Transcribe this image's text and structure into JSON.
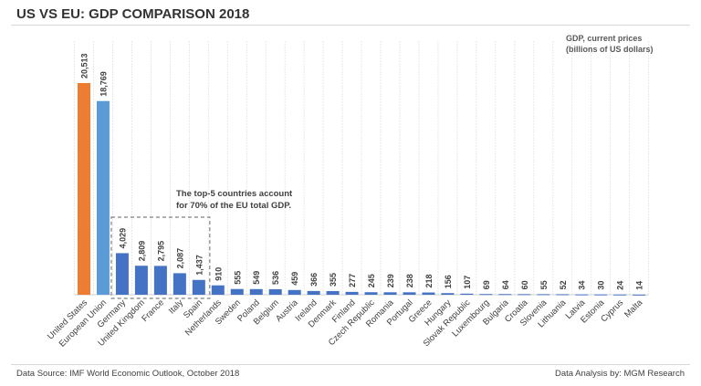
{
  "title": "US VS EU: GDP COMPARISON 2018",
  "footer": {
    "source": "Data Source: IMF World Economic Outlook, October 2018",
    "analysis": "Data Analysis by: MGM Research"
  },
  "chart_data": {
    "type": "bar",
    "title": "US VS EU: GDP COMPARISON 2018",
    "unit_label": [
      "GDP, current prices",
      "(billions of US dollars)"
    ],
    "annotation": [
      "The top-5 countries account",
      "for 70% of the EU total GDP."
    ],
    "categories": [
      "United States",
      "European Union",
      "Germany",
      "United Kingdom",
      "France",
      "Italy",
      "Spain",
      "Netherlands",
      "Sweden",
      "Poland",
      "Belgium",
      "Austria",
      "Ireland",
      "Denmark",
      "Finland",
      "Czech Republic",
      "Romania",
      "Portugal",
      "Greece",
      "Hungary",
      "Slovak Republic",
      "Luxembourg",
      "Bulgaria",
      "Croatia",
      "Slovenia",
      "Lithuania",
      "Latvia",
      "Estonia",
      "Cyprus",
      "Malta"
    ],
    "values": [
      20513,
      18769,
      4029,
      2809,
      2795,
      2087,
      1437,
      910,
      555,
      549,
      536,
      459,
      366,
      355,
      277,
      245,
      239,
      238,
      218,
      156,
      107,
      69,
      64,
      60,
      55,
      52,
      34,
      30,
      24,
      14
    ],
    "value_labels": [
      "20,513",
      "18,769",
      "4,029",
      "2,809",
      "2,795",
      "2,087",
      "1,437",
      "910",
      "555",
      "549",
      "536",
      "459",
      "366",
      "355",
      "277",
      "245",
      "239",
      "238",
      "218",
      "156",
      "107",
      "69",
      "64",
      "60",
      "55",
      "52",
      "34",
      "30",
      "24",
      "14"
    ],
    "colors": {
      "United States": "#ed7d31",
      "European Union": "#5b9bd5",
      "member": "#4472c4"
    },
    "ylim": [
      0,
      20513
    ],
    "grid": "vertical separators",
    "legend": "none"
  }
}
